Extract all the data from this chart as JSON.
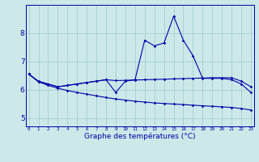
{
  "title": "Graphe des températures (°C)",
  "background_color": "#cce8e8",
  "line_color": "#0000aa",
  "grid_color": "#99cccc",
  "x_ticks": [
    0,
    1,
    2,
    3,
    4,
    5,
    6,
    7,
    8,
    9,
    10,
    11,
    12,
    13,
    14,
    15,
    16,
    17,
    18,
    19,
    20,
    21,
    22,
    23
  ],
  "y_ticks": [
    5,
    6,
    7,
    8
  ],
  "ylim": [
    4.7,
    9.0
  ],
  "xlim": [
    -0.3,
    23.3
  ],
  "series1": [
    6.55,
    6.3,
    6.2,
    6.1,
    6.15,
    6.2,
    6.25,
    6.3,
    6.35,
    5.9,
    6.3,
    6.35,
    7.75,
    7.55,
    7.65,
    8.6,
    7.75,
    7.2,
    6.4,
    6.4,
    6.4,
    6.35,
    6.2,
    5.9
  ],
  "series2": [
    6.55,
    6.28,
    6.2,
    6.1,
    6.15,
    6.2,
    6.25,
    6.3,
    6.35,
    6.32,
    6.33,
    6.34,
    6.35,
    6.36,
    6.37,
    6.38,
    6.39,
    6.4,
    6.41,
    6.42,
    6.42,
    6.42,
    6.3,
    6.1
  ],
  "series3": [
    6.55,
    6.28,
    6.15,
    6.05,
    5.97,
    5.9,
    5.84,
    5.78,
    5.72,
    5.67,
    5.63,
    5.59,
    5.56,
    5.53,
    5.51,
    5.49,
    5.47,
    5.45,
    5.43,
    5.41,
    5.39,
    5.37,
    5.33,
    5.28
  ]
}
